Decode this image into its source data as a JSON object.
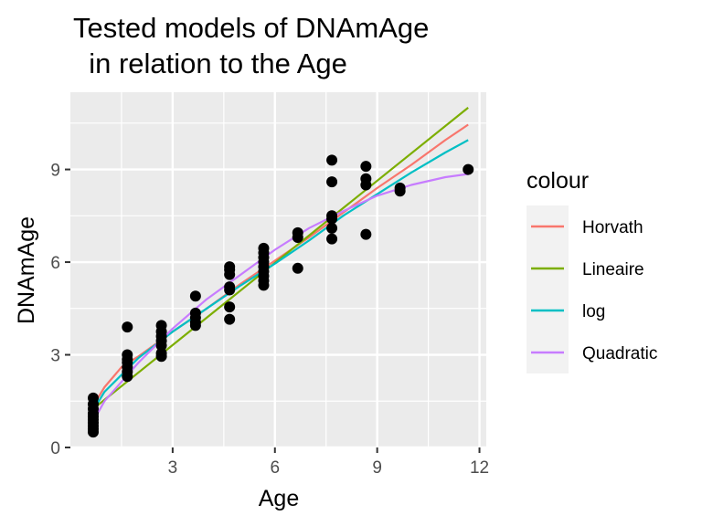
{
  "chart_data": {
    "type": "scatter",
    "title_lines": [
      "Tested models of DNAmAge",
      "  in relation to the Age"
    ],
    "xlabel": "Age",
    "ylabel": "DNAmAge",
    "xlim": [
      0.0,
      12.2
    ],
    "ylim": [
      0,
      11.5
    ],
    "x_ticks": [
      3,
      6,
      9,
      12
    ],
    "y_ticks": [
      0,
      3,
      6,
      9
    ],
    "x_tick_labels": [
      "3",
      "6",
      "9",
      "12"
    ],
    "y_tick_labels": [
      "0",
      "3",
      "6",
      "9"
    ],
    "grid": true,
    "legend": {
      "title": "colour",
      "placement": "right"
    },
    "points": [
      [
        0.67,
        0.5
      ],
      [
        0.67,
        0.6
      ],
      [
        0.67,
        0.7
      ],
      [
        0.67,
        0.8
      ],
      [
        0.67,
        0.9
      ],
      [
        0.67,
        1.0
      ],
      [
        0.67,
        1.1
      ],
      [
        0.67,
        1.25
      ],
      [
        0.67,
        1.4
      ],
      [
        0.67,
        1.6
      ],
      [
        1.67,
        2.3
      ],
      [
        1.67,
        2.45
      ],
      [
        1.67,
        2.6
      ],
      [
        1.67,
        2.75
      ],
      [
        1.67,
        2.85
      ],
      [
        1.67,
        3.0
      ],
      [
        1.67,
        3.9
      ],
      [
        2.67,
        2.95
      ],
      [
        2.67,
        3.05
      ],
      [
        2.67,
        3.3
      ],
      [
        2.67,
        3.45
      ],
      [
        2.67,
        3.6
      ],
      [
        2.67,
        3.75
      ],
      [
        2.67,
        3.95
      ],
      [
        3.67,
        3.95
      ],
      [
        3.67,
        4.05
      ],
      [
        3.67,
        4.2
      ],
      [
        3.67,
        4.35
      ],
      [
        3.67,
        4.9
      ],
      [
        4.67,
        4.15
      ],
      [
        4.67,
        4.55
      ],
      [
        4.67,
        5.1
      ],
      [
        4.67,
        5.2
      ],
      [
        4.67,
        5.6
      ],
      [
        4.67,
        5.75
      ],
      [
        4.67,
        5.85
      ],
      [
        5.67,
        5.25
      ],
      [
        5.67,
        5.4
      ],
      [
        5.67,
        5.55
      ],
      [
        5.67,
        5.7
      ],
      [
        5.67,
        5.85
      ],
      [
        5.67,
        6.0
      ],
      [
        5.67,
        6.15
      ],
      [
        5.67,
        6.3
      ],
      [
        5.67,
        6.45
      ],
      [
        6.67,
        5.8
      ],
      [
        6.67,
        6.8
      ],
      [
        6.67,
        6.95
      ],
      [
        7.67,
        6.75
      ],
      [
        7.67,
        7.1
      ],
      [
        7.67,
        7.4
      ],
      [
        7.67,
        7.5
      ],
      [
        7.67,
        8.6
      ],
      [
        7.67,
        9.3
      ],
      [
        8.67,
        6.9
      ],
      [
        8.67,
        8.5
      ],
      [
        8.67,
        8.7
      ],
      [
        8.67,
        9.1
      ],
      [
        9.67,
        8.3
      ],
      [
        9.67,
        8.4
      ],
      [
        11.67,
        9.0
      ]
    ],
    "series": [
      {
        "name": "Horvath",
        "color": "#F8766D",
        "x": [
          0.67,
          1.0,
          1.5,
          2.0,
          3.0,
          4.0,
          5.0,
          6.0,
          7.0,
          8.0,
          9.0,
          10.0,
          11.0,
          11.67
        ],
        "y": [
          1.35,
          1.95,
          2.6,
          2.95,
          3.75,
          4.5,
          5.3,
          6.05,
          6.8,
          7.6,
          8.4,
          9.15,
          9.95,
          10.45
        ]
      },
      {
        "name": "Lineaire",
        "color": "#7CAE00",
        "x": [
          0.67,
          11.67
        ],
        "y": [
          1.25,
          11.0
        ]
      },
      {
        "name": "log",
        "color": "#00BFC4",
        "x": [
          0.67,
          1.0,
          2.0,
          3.0,
          4.0,
          5.0,
          6.0,
          7.0,
          8.0,
          9.0,
          10.0,
          11.0,
          11.67
        ],
        "y": [
          1.2,
          1.8,
          2.9,
          3.75,
          4.5,
          5.25,
          5.95,
          6.7,
          7.5,
          8.2,
          8.9,
          9.55,
          9.95
        ]
      },
      {
        "name": "Quadratic",
        "color": "#C77CFF",
        "x": [
          0.67,
          1.0,
          2.0,
          3.0,
          4.0,
          5.0,
          6.0,
          7.0,
          8.0,
          9.0,
          10.0,
          11.0,
          11.67
        ],
        "y": [
          0.85,
          1.5,
          2.75,
          3.85,
          4.8,
          5.6,
          6.4,
          7.1,
          7.65,
          8.15,
          8.5,
          8.75,
          8.85
        ]
      }
    ]
  }
}
